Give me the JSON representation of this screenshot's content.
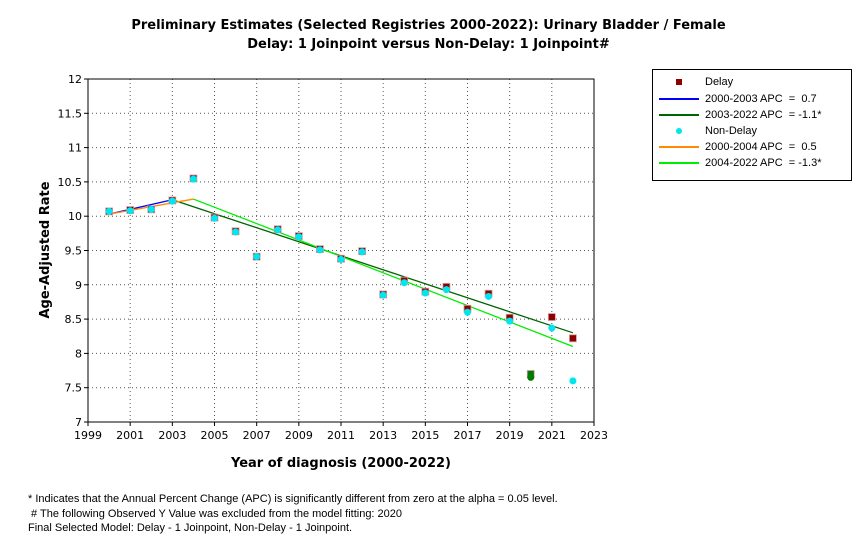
{
  "chart_data": {
    "type": "scatter",
    "title": "Preliminary Estimates (Selected Registries 2000-2022): Urinary Bladder / Female",
    "subtitle": "Delay: 1 Joinpoint  versus  Non-Delay: 1 Joinpoint#",
    "xlabel": "Year of diagnosis (2000-2022)",
    "ylabel": "Age-Adjusted Rate",
    "xlim": [
      1999,
      2023
    ],
    "ylim": [
      7,
      12
    ],
    "xticks": [
      "1999",
      "2001",
      "2003",
      "2005",
      "2007",
      "2009",
      "2011",
      "2013",
      "2015",
      "2017",
      "2019",
      "2021",
      "2023"
    ],
    "yticks": [
      "7",
      "7.5",
      "8",
      "8.5",
      "9",
      "9.5",
      "10",
      "10.5",
      "11",
      "11.5",
      "12"
    ],
    "grid": true,
    "legend_position": "right",
    "x": [
      2000,
      2001,
      2002,
      2003,
      2004,
      2005,
      2006,
      2007,
      2008,
      2009,
      2010,
      2011,
      2012,
      2013,
      2014,
      2015,
      2016,
      2017,
      2018,
      2019,
      2020,
      2021,
      2022
    ],
    "series": [
      {
        "name": "Delay",
        "color": "#8b0000",
        "values": [
          10.07,
          10.09,
          10.1,
          10.23,
          10.55,
          9.98,
          9.78,
          9.41,
          9.81,
          9.71,
          9.52,
          9.38,
          9.49,
          8.86,
          9.06,
          8.9,
          8.97,
          8.65,
          8.87,
          8.52,
          7.7,
          8.53,
          8.22
        ]
      },
      {
        "name": "Non-Delay",
        "color": "#00e5ee",
        "values": [
          10.07,
          10.08,
          10.1,
          10.22,
          10.54,
          9.97,
          9.77,
          9.41,
          9.8,
          9.7,
          9.51,
          9.37,
          9.48,
          8.85,
          9.03,
          8.88,
          8.93,
          8.6,
          8.83,
          8.47,
          7.65,
          8.37,
          7.6
        ]
      }
    ],
    "excluded_point": {
      "x": 2020,
      "color": "#007a00"
    },
    "segments": [
      {
        "label": "2000-2003 APC  =  0.7",
        "color": "#0000ff",
        "x": [
          2000,
          2003
        ],
        "y": [
          10.03,
          10.24
        ]
      },
      {
        "label": "2003-2022 APC  = -1.1*",
        "color": "#006400",
        "x": [
          2003,
          2022
        ],
        "y": [
          10.24,
          8.3
        ]
      },
      {
        "label": "2000-2004 APC  =  0.5",
        "color": "#ff8c00",
        "x": [
          2000,
          2004
        ],
        "y": [
          10.03,
          10.25
        ]
      },
      {
        "label": "2004-2022 APC  = -1.3*",
        "color": "#00ee00",
        "x": [
          2004,
          2022
        ],
        "y": [
          10.25,
          8.1
        ]
      }
    ]
  },
  "legend": {
    "delay": "Delay",
    "s1": "2000-2003 APC  =  0.7",
    "s2": "2003-2022 APC  = -1.1*",
    "nondelay": "Non-Delay",
    "s3": "2000-2004 APC  =  0.5",
    "s4": "2004-2022 APC  = -1.3*"
  },
  "footer": {
    "line1": "* Indicates that the Annual Percent Change (APC) is significantly different from zero at the alpha = 0.05 level.",
    "line2": " # The following Observed Y Value was excluded from the model fitting: 2020",
    "line3": "Final Selected Model: Delay - 1 Joinpoint, Non-Delay - 1 Joinpoint."
  }
}
